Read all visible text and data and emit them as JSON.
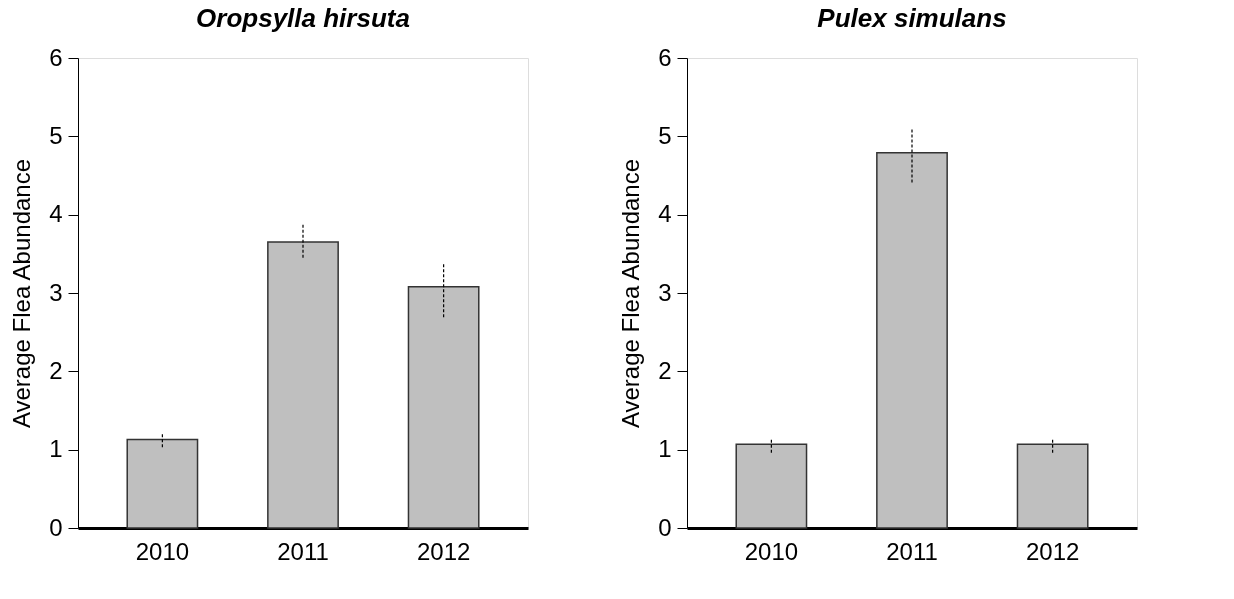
{
  "chart_data": [
    {
      "type": "bar",
      "title": "Oropsylla hirsuta",
      "ylabel": "Average Flea Abundance",
      "categories": [
        "2010",
        "2011",
        "2012"
      ],
      "values": [
        1.13,
        3.65,
        3.08
      ],
      "errors": [
        [
          1.03,
          1.2
        ],
        [
          3.45,
          3.87
        ],
        [
          2.69,
          3.38
        ]
      ],
      "color": "#bfbfbf",
      "ylim": [
        0,
        6
      ],
      "yticks": [
        0,
        1,
        2,
        3,
        4,
        5,
        6
      ],
      "grid": false
    },
    {
      "type": "bar",
      "title": "Pulex simulans",
      "ylabel": "Average Flea Abundance",
      "categories": [
        "2010",
        "2011",
        "2012"
      ],
      "values": [
        1.07,
        4.79,
        1.07
      ],
      "errors": [
        [
          0.96,
          1.13
        ],
        [
          4.41,
          5.1
        ],
        [
          0.96,
          1.13
        ]
      ],
      "color": "#bfbfbf",
      "ylim": [
        0,
        6
      ],
      "yticks": [
        0,
        1,
        2,
        3,
        4,
        5,
        6
      ],
      "grid": false
    }
  ]
}
